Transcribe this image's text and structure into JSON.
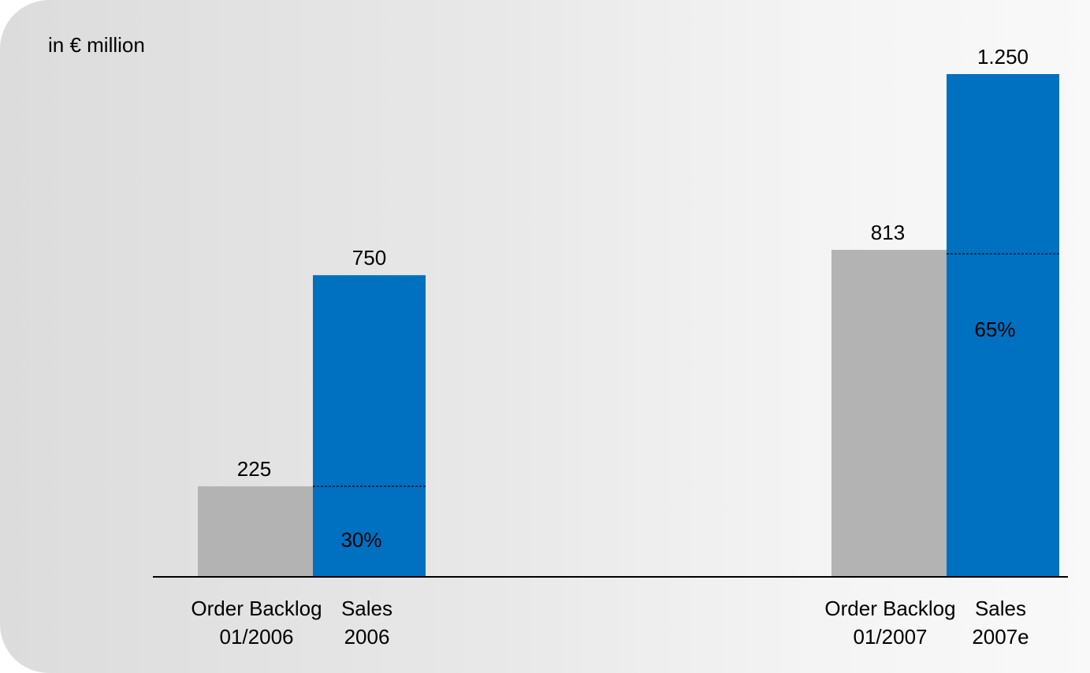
{
  "colors": {
    "backlog": "#b3b3b3",
    "sales": "#0070c0",
    "axis": "#000000",
    "text": "#000000"
  },
  "unit_label": "in € million",
  "chart_data": {
    "type": "bar",
    "unit": "in € million",
    "ylim": [
      0,
      1300
    ],
    "grid": false,
    "groups": [
      {
        "bars": [
          {
            "name": "backlog",
            "label_lines": [
              "Order Backlog",
              "01/2006"
            ],
            "value": 225,
            "value_label": "225"
          },
          {
            "name": "sales",
            "label_lines": [
              "Sales",
              "2006"
            ],
            "value": 750,
            "value_label": "750",
            "share_label": "30%"
          }
        ]
      },
      {
        "bars": [
          {
            "name": "backlog",
            "label_lines": [
              "Order Backlog",
              "01/2007"
            ],
            "value": 813,
            "value_label": "813"
          },
          {
            "name": "sales",
            "label_lines": [
              "Sales",
              "2007e"
            ],
            "value": 1250,
            "value_label": "1.250",
            "share_label": "65%"
          }
        ]
      }
    ]
  }
}
